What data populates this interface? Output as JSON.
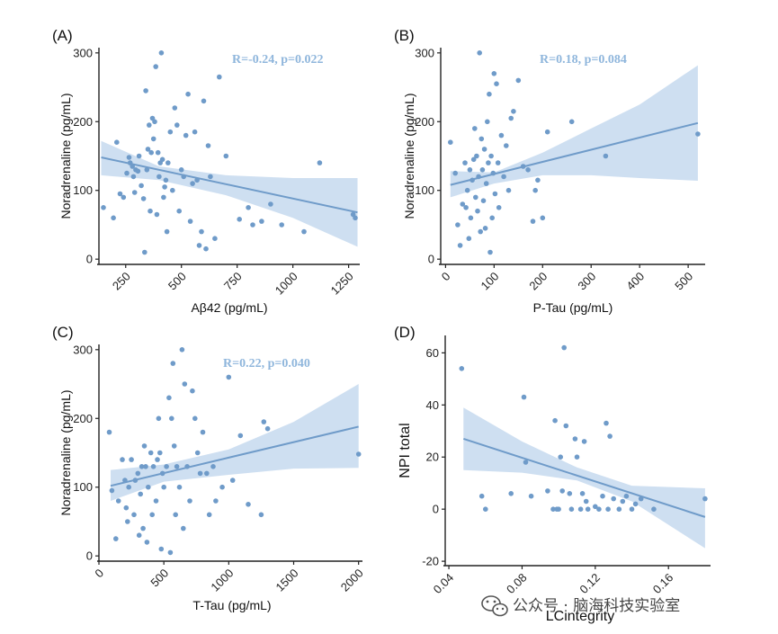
{
  "watermark": {
    "text": "公众号 · 脑海科技实验室",
    "icon": "wechat-icon"
  },
  "colors": {
    "point": "#6f9bc9",
    "line": "#6f9bc9",
    "band": "#c6d9ee",
    "stat": "#8fb6dc"
  },
  "chart_data": [
    {
      "id": "A",
      "panel_label": "(A)",
      "type": "scatter",
      "stat": "R=-0.24, p=0.022",
      "xlabel": "Aβ42 (pg/mL)",
      "ylabel": "Noradrenaline (pg/mL)",
      "xlim": [
        130,
        1300
      ],
      "ylim": [
        -5,
        305
      ],
      "xticks": [
        250,
        500,
        750,
        1000,
        1250
      ],
      "yticks": [
        0,
        100,
        200,
        300
      ],
      "xtick_labels": [
        "250",
        "500",
        "750",
        "1000",
        "1250"
      ],
      "ytick_labels": [
        "0",
        "100",
        "200",
        "300"
      ],
      "xrotate": true,
      "fit": {
        "x": [
          140,
          1290
        ],
        "y": [
          148,
          68
        ]
      },
      "band": {
        "x": [
          140,
          400,
          700,
          1000,
          1290
        ],
        "upper": [
          172,
          135,
          122,
          118,
          118
        ],
        "lower": [
          122,
          115,
          93,
          60,
          18
        ]
      },
      "points": [
        [
          150,
          75
        ],
        [
          195,
          60
        ],
        [
          210,
          170
        ],
        [
          225,
          95
        ],
        [
          240,
          90
        ],
        [
          255,
          125
        ],
        [
          265,
          148
        ],
        [
          270,
          140
        ],
        [
          280,
          135
        ],
        [
          285,
          120
        ],
        [
          290,
          97
        ],
        [
          295,
          130
        ],
        [
          305,
          128
        ],
        [
          310,
          150
        ],
        [
          320,
          107
        ],
        [
          330,
          88
        ],
        [
          335,
          10
        ],
        [
          340,
          245
        ],
        [
          345,
          130
        ],
        [
          350,
          160
        ],
        [
          355,
          195
        ],
        [
          360,
          70
        ],
        [
          365,
          155
        ],
        [
          370,
          205
        ],
        [
          375,
          175
        ],
        [
          380,
          200
        ],
        [
          385,
          280
        ],
        [
          390,
          65
        ],
        [
          395,
          155
        ],
        [
          400,
          120
        ],
        [
          405,
          140
        ],
        [
          410,
          300
        ],
        [
          415,
          145
        ],
        [
          420,
          90
        ],
        [
          425,
          105
        ],
        [
          430,
          115
        ],
        [
          435,
          40
        ],
        [
          440,
          140
        ],
        [
          450,
          185
        ],
        [
          460,
          100
        ],
        [
          470,
          220
        ],
        [
          480,
          195
        ],
        [
          490,
          70
        ],
        [
          500,
          130
        ],
        [
          510,
          120
        ],
        [
          520,
          180
        ],
        [
          530,
          240
        ],
        [
          540,
          55
        ],
        [
          550,
          110
        ],
        [
          560,
          185
        ],
        [
          570,
          115
        ],
        [
          580,
          20
        ],
        [
          590,
          40
        ],
        [
          600,
          230
        ],
        [
          610,
          15
        ],
        [
          620,
          165
        ],
        [
          630,
          120
        ],
        [
          650,
          30
        ],
        [
          670,
          265
        ],
        [
          700,
          150
        ],
        [
          760,
          58
        ],
        [
          800,
          75
        ],
        [
          820,
          50
        ],
        [
          860,
          55
        ],
        [
          900,
          80
        ],
        [
          950,
          50
        ],
        [
          1050,
          40
        ],
        [
          1120,
          140
        ],
        [
          1270,
          65
        ],
        [
          1280,
          60
        ]
      ]
    },
    {
      "id": "B",
      "panel_label": "(B)",
      "type": "scatter",
      "stat": "R=0.18, p=0.084",
      "xlabel": "P-Tau (pg/mL)",
      "ylabel": "Noradrenaline (pg/mL)",
      "xlim": [
        -10,
        535
      ],
      "ylim": [
        -5,
        305
      ],
      "xticks": [
        0,
        100,
        200,
        300,
        400,
        500
      ],
      "yticks": [
        0,
        100,
        200,
        300
      ],
      "xtick_labels": [
        "0",
        "100",
        "200",
        "300",
        "400",
        "500"
      ],
      "ytick_labels": [
        "0",
        "100",
        "200",
        "300"
      ],
      "xrotate": true,
      "fit": {
        "x": [
          10,
          520
        ],
        "y": [
          108,
          198
        ]
      },
      "band": {
        "x": [
          10,
          100,
          200,
          300,
          400,
          520
        ],
        "upper": [
          128,
          126,
          155,
          190,
          225,
          282
        ],
        "lower": [
          90,
          110,
          122,
          122,
          118,
          114
        ]
      },
      "points": [
        [
          10,
          170
        ],
        [
          20,
          125
        ],
        [
          25,
          50
        ],
        [
          30,
          20
        ],
        [
          35,
          80
        ],
        [
          40,
          140
        ],
        [
          42,
          75
        ],
        [
          45,
          100
        ],
        [
          48,
          30
        ],
        [
          50,
          130
        ],
        [
          52,
          60
        ],
        [
          55,
          115
        ],
        [
          58,
          145
        ],
        [
          60,
          190
        ],
        [
          62,
          90
        ],
        [
          64,
          150
        ],
        [
          66,
          70
        ],
        [
          68,
          120
        ],
        [
          70,
          300
        ],
        [
          72,
          40
        ],
        [
          74,
          175
        ],
        [
          76,
          130
        ],
        [
          78,
          85
        ],
        [
          80,
          160
        ],
        [
          82,
          45
        ],
        [
          84,
          110
        ],
        [
          86,
          200
        ],
        [
          88,
          140
        ],
        [
          90,
          240
        ],
        [
          92,
          10
        ],
        [
          94,
          150
        ],
        [
          96,
          60
        ],
        [
          98,
          125
        ],
        [
          100,
          270
        ],
        [
          102,
          95
        ],
        [
          105,
          255
        ],
        [
          108,
          140
        ],
        [
          110,
          75
        ],
        [
          115,
          180
        ],
        [
          120,
          120
        ],
        [
          125,
          165
        ],
        [
          130,
          100
        ],
        [
          135,
          205
        ],
        [
          140,
          215
        ],
        [
          150,
          260
        ],
        [
          160,
          135
        ],
        [
          170,
          130
        ],
        [
          180,
          55
        ],
        [
          185,
          100
        ],
        [
          190,
          115
        ],
        [
          200,
          60
        ],
        [
          210,
          185
        ],
        [
          260,
          200
        ],
        [
          330,
          150
        ],
        [
          520,
          182
        ]
      ]
    },
    {
      "id": "C",
      "panel_label": "(C)",
      "type": "scatter",
      "stat": "R=0.22, p=0.040",
      "xlabel": "T-Tau (pg/mL)",
      "ylabel": "Noradrenaline (pg/mL)",
      "xlim": [
        0,
        2030
      ],
      "ylim": [
        -5,
        305
      ],
      "xticks": [
        0,
        500,
        1000,
        1500,
        2000
      ],
      "yticks": [
        0,
        100,
        200,
        300
      ],
      "xtick_labels": [
        "0",
        "500",
        "1000",
        "1500",
        "2000"
      ],
      "ytick_labels": [
        "0",
        "100",
        "200",
        "300"
      ],
      "xrotate": true,
      "fit": {
        "x": [
          90,
          2000
        ],
        "y": [
          102,
          188
        ]
      },
      "band": {
        "x": [
          90,
          500,
          1000,
          1500,
          2000
        ],
        "upper": [
          125,
          133,
          155,
          195,
          250
        ],
        "lower": [
          80,
          108,
          118,
          127,
          128
        ]
      },
      "points": [
        [
          80,
          180
        ],
        [
          100,
          95
        ],
        [
          130,
          25
        ],
        [
          150,
          80
        ],
        [
          180,
          140
        ],
        [
          200,
          110
        ],
        [
          210,
          70
        ],
        [
          220,
          50
        ],
        [
          230,
          100
        ],
        [
          250,
          140
        ],
        [
          270,
          60
        ],
        [
          280,
          110
        ],
        [
          300,
          120
        ],
        [
          310,
          30
        ],
        [
          320,
          90
        ],
        [
          330,
          130
        ],
        [
          340,
          40
        ],
        [
          350,
          160
        ],
        [
          360,
          130
        ],
        [
          370,
          20
        ],
        [
          380,
          100
        ],
        [
          400,
          150
        ],
        [
          410,
          60
        ],
        [
          420,
          130
        ],
        [
          440,
          80
        ],
        [
          450,
          140
        ],
        [
          460,
          200
        ],
        [
          470,
          150
        ],
        [
          480,
          10
        ],
        [
          490,
          120
        ],
        [
          500,
          100
        ],
        [
          520,
          130
        ],
        [
          540,
          230
        ],
        [
          550,
          5
        ],
        [
          560,
          200
        ],
        [
          570,
          280
        ],
        [
          580,
          160
        ],
        [
          590,
          60
        ],
        [
          600,
          130
        ],
        [
          620,
          100
        ],
        [
          640,
          300
        ],
        [
          650,
          40
        ],
        [
          660,
          250
        ],
        [
          680,
          130
        ],
        [
          700,
          80
        ],
        [
          720,
          240
        ],
        [
          740,
          200
        ],
        [
          760,
          150
        ],
        [
          780,
          120
        ],
        [
          800,
          180
        ],
        [
          830,
          120
        ],
        [
          850,
          60
        ],
        [
          880,
          130
        ],
        [
          900,
          80
        ],
        [
          950,
          100
        ],
        [
          1000,
          260
        ],
        [
          1030,
          110
        ],
        [
          1090,
          175
        ],
        [
          1150,
          75
        ],
        [
          1250,
          60
        ],
        [
          1270,
          195
        ],
        [
          1300,
          185
        ],
        [
          2000,
          148
        ]
      ]
    },
    {
      "id": "D",
      "panel_label": "(D)",
      "type": "scatter",
      "stat": "",
      "xlabel": "LCintegrity",
      "ylabel": "NPI total",
      "xlim": [
        0.038,
        0.183
      ],
      "ylim": [
        -21,
        66
      ],
      "xticks": [
        0.04,
        0.08,
        0.12,
        0.16
      ],
      "yticks": [
        -20,
        0,
        20,
        40,
        60
      ],
      "xtick_labels": [
        "0.04",
        "0.08",
        "0.12",
        "0.16"
      ],
      "ytick_labels": [
        "-20",
        "0",
        "20",
        "40",
        "60"
      ],
      "xrotate": true,
      "fit": {
        "x": [
          0.048,
          0.18
        ],
        "y": [
          27,
          -3
        ]
      },
      "band": {
        "x": [
          0.048,
          0.08,
          0.11,
          0.14,
          0.18
        ],
        "upper": [
          39,
          26,
          16,
          9,
          8
        ],
        "lower": [
          15,
          14,
          11,
          3,
          -15
        ]
      },
      "points": [
        [
          0.047,
          54
        ],
        [
          0.058,
          5
        ],
        [
          0.06,
          0
        ],
        [
          0.074,
          6
        ],
        [
          0.081,
          43
        ],
        [
          0.082,
          18
        ],
        [
          0.085,
          5
        ],
        [
          0.094,
          7
        ],
        [
          0.097,
          0
        ],
        [
          0.098,
          34
        ],
        [
          0.099,
          0
        ],
        [
          0.1,
          0
        ],
        [
          0.101,
          20
        ],
        [
          0.102,
          7
        ],
        [
          0.103,
          62
        ],
        [
          0.104,
          32
        ],
        [
          0.106,
          6
        ],
        [
          0.107,
          0
        ],
        [
          0.109,
          27
        ],
        [
          0.11,
          20
        ],
        [
          0.112,
          0
        ],
        [
          0.113,
          6
        ],
        [
          0.114,
          26
        ],
        [
          0.115,
          3
        ],
        [
          0.116,
          0
        ],
        [
          0.12,
          1
        ],
        [
          0.122,
          0
        ],
        [
          0.124,
          5
        ],
        [
          0.126,
          33
        ],
        [
          0.127,
          0
        ],
        [
          0.128,
          28
        ],
        [
          0.13,
          4
        ],
        [
          0.133,
          0
        ],
        [
          0.135,
          3
        ],
        [
          0.137,
          5
        ],
        [
          0.14,
          0
        ],
        [
          0.142,
          2
        ],
        [
          0.145,
          4
        ],
        [
          0.152,
          0
        ],
        [
          0.18,
          4
        ]
      ]
    }
  ]
}
